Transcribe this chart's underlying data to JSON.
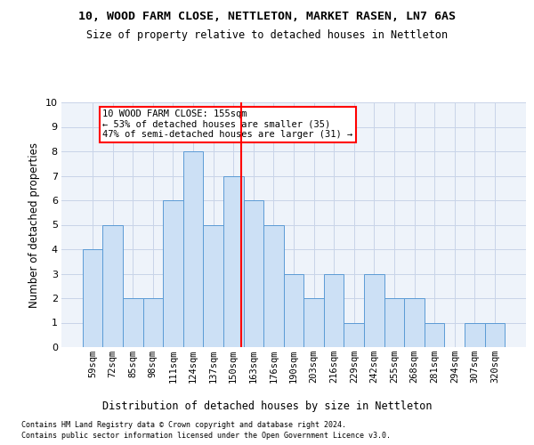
{
  "title1": "10, WOOD FARM CLOSE, NETTLETON, MARKET RASEN, LN7 6AS",
  "title2": "Size of property relative to detached houses in Nettleton",
  "xlabel": "Distribution of detached houses by size in Nettleton",
  "ylabel": "Number of detached properties",
  "categories": [
    "59sqm",
    "72sqm",
    "85sqm",
    "98sqm",
    "111sqm",
    "124sqm",
    "137sqm",
    "150sqm",
    "163sqm",
    "176sqm",
    "190sqm",
    "203sqm",
    "216sqm",
    "229sqm",
    "242sqm",
    "255sqm",
    "268sqm",
    "281sqm",
    "294sqm",
    "307sqm",
    "320sqm"
  ],
  "values": [
    4,
    5,
    2,
    2,
    6,
    8,
    5,
    7,
    6,
    5,
    3,
    2,
    3,
    1,
    3,
    2,
    2,
    1,
    0,
    1,
    1
  ],
  "bar_color": "#cce0f5",
  "bar_edge_color": "#5b9bd5",
  "grid_color": "#c8d4e8",
  "background_color": "#eef3fa",
  "vline_x_index": 7.38,
  "vline_color": "red",
  "annotation_text": "10 WOOD FARM CLOSE: 155sqm\n← 53% of detached houses are smaller (35)\n47% of semi-detached houses are larger (31) →",
  "annotation_box_color": "white",
  "annotation_box_edge_color": "red",
  "ylim": [
    0,
    10
  ],
  "yticks": [
    0,
    1,
    2,
    3,
    4,
    5,
    6,
    7,
    8,
    9,
    10
  ],
  "footer1": "Contains HM Land Registry data © Crown copyright and database right 2024.",
  "footer2": "Contains public sector information licensed under the Open Government Licence v3.0."
}
